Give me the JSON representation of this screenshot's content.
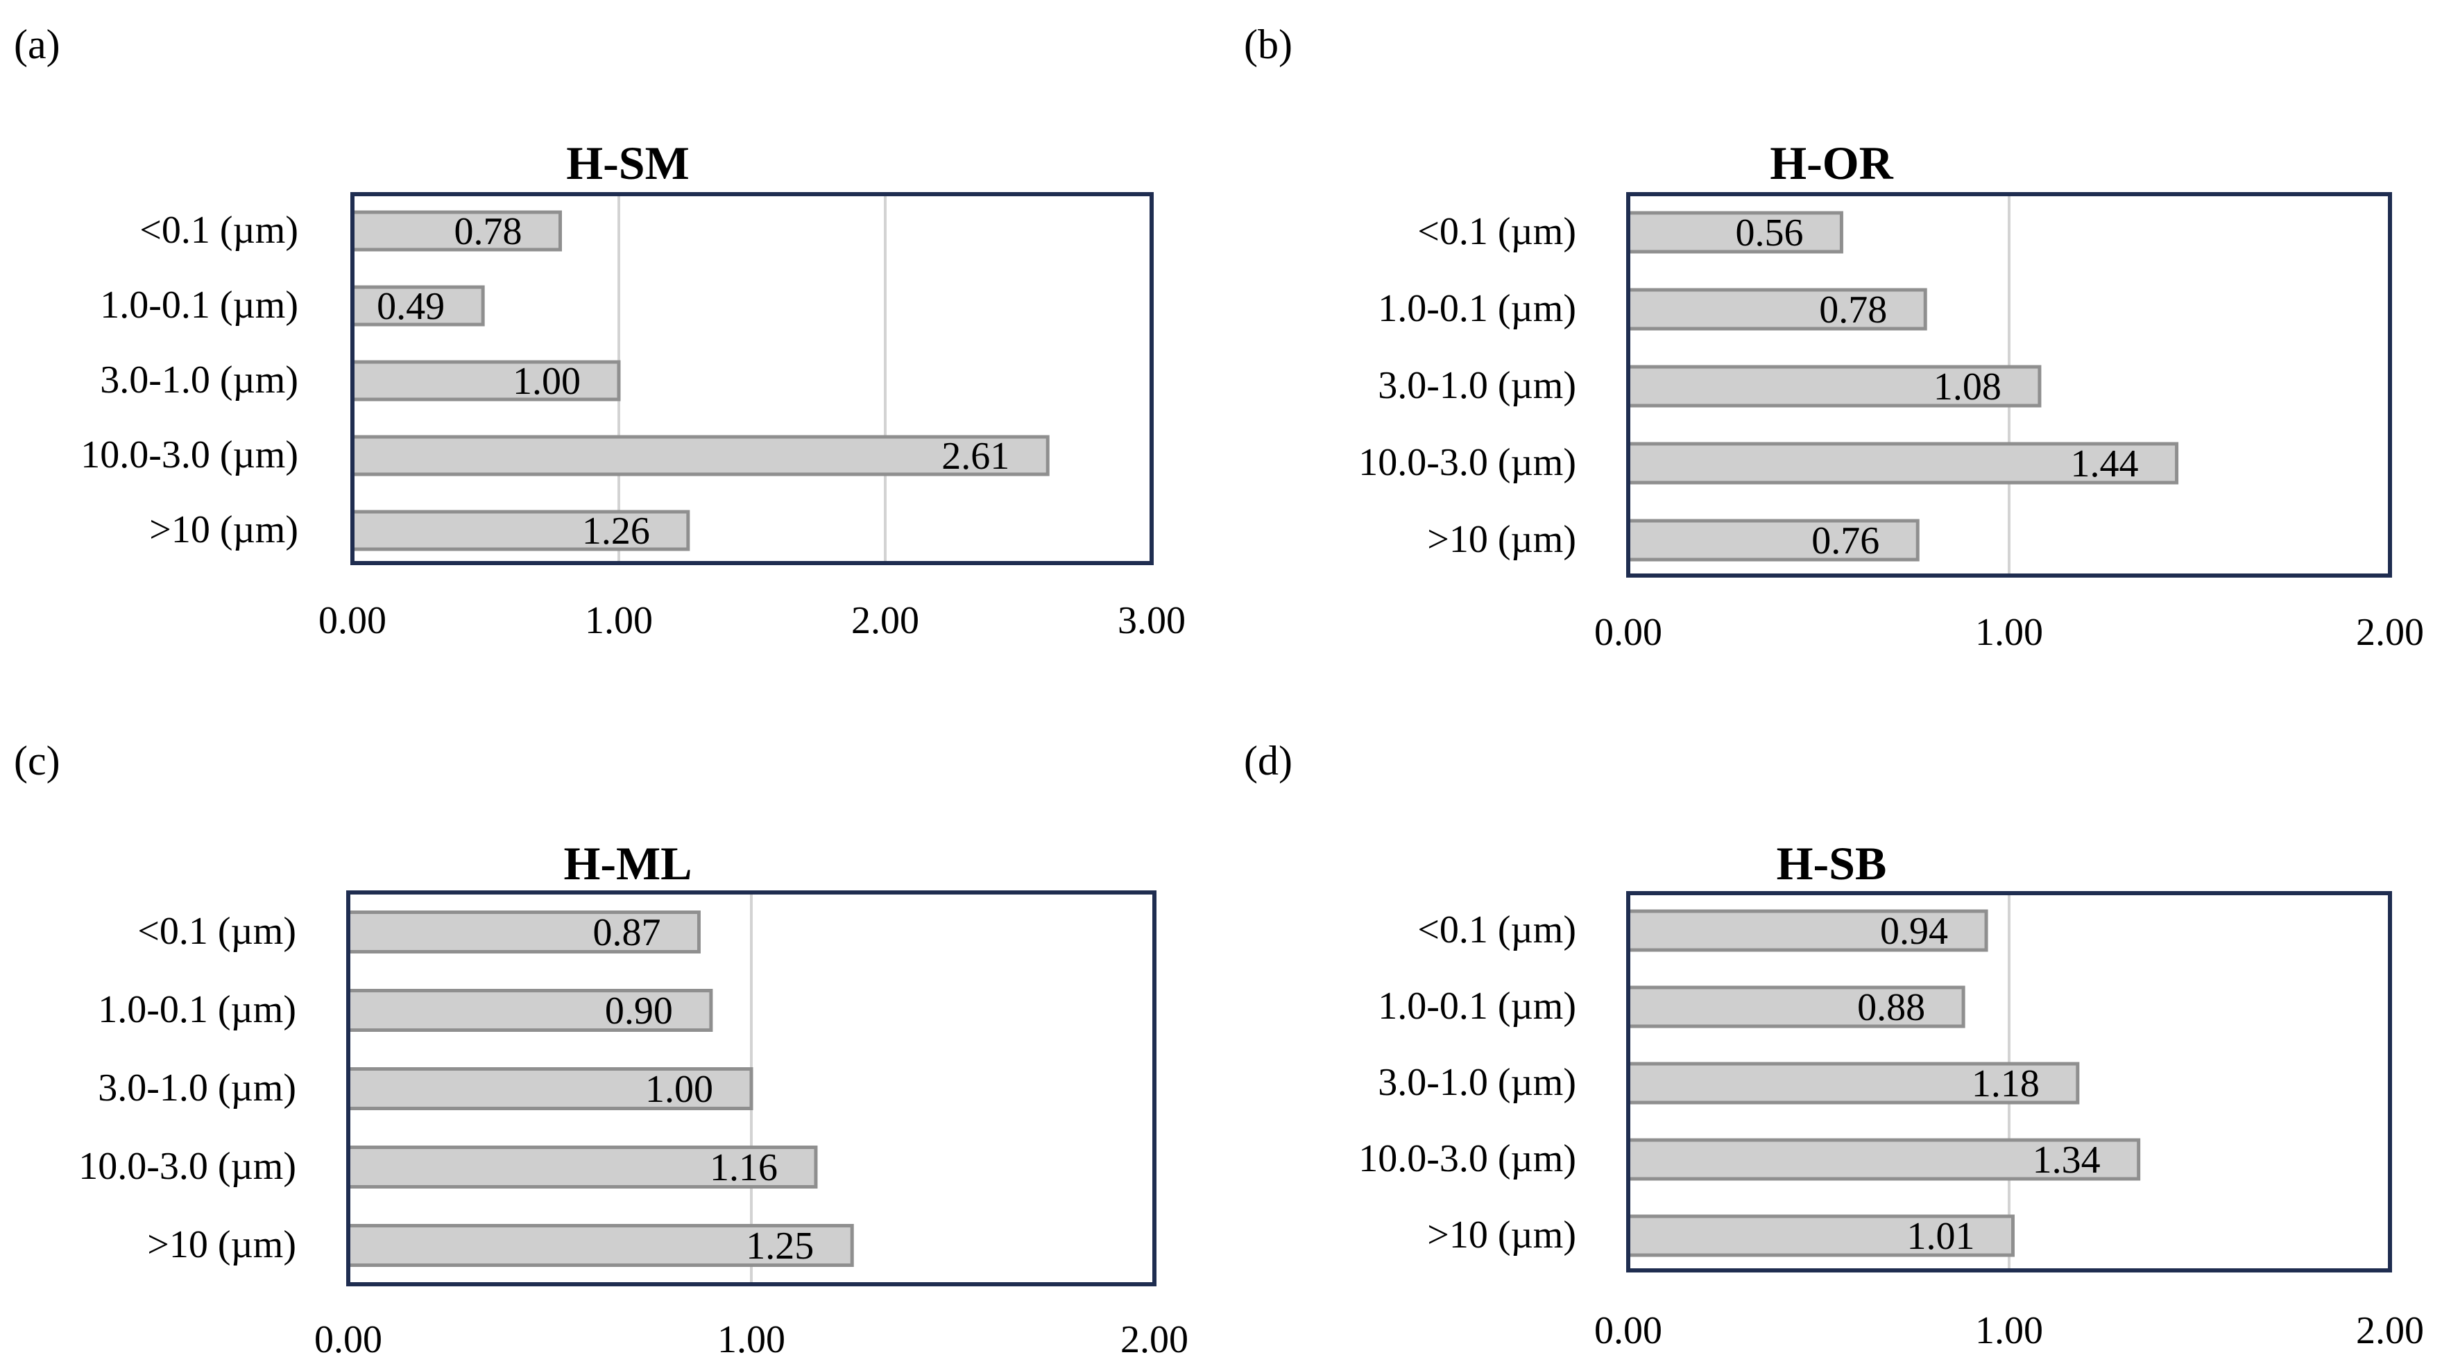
{
  "colors": {
    "bar_fill": "#cfcfcf",
    "bar_stroke": "#8f8f8f",
    "frame": "#1f2d50",
    "grid": "#d3d3d3"
  },
  "chart_data": [
    {
      "panel": "(a)",
      "type": "bar",
      "orientation": "horizontal",
      "title": "H-SM",
      "categories": [
        "<0.1 (µm)",
        "1.0-0.1 (µm)",
        "3.0-1.0 (µm)",
        "10.0-3.0 (µm)",
        ">10 (µm)"
      ],
      "values": [
        0.78,
        0.49,
        1.0,
        2.61,
        1.26
      ],
      "value_labels": [
        "0.78",
        "0.49",
        "1.00",
        "2.61",
        "1.26"
      ],
      "xlim": [
        0,
        3
      ],
      "xticks": [
        "0.00",
        "1.00",
        "2.00",
        "3.00"
      ],
      "grid": true,
      "legend": "none"
    },
    {
      "panel": "(b)",
      "type": "bar",
      "orientation": "horizontal",
      "title": "H-OR",
      "categories": [
        "<0.1 (µm)",
        "1.0-0.1 (µm)",
        "3.0-1.0 (µm)",
        "10.0-3.0 (µm)",
        ">10 (µm)"
      ],
      "values": [
        0.56,
        0.78,
        1.08,
        1.44,
        0.76
      ],
      "value_labels": [
        "0.56",
        "0.78",
        "1.08",
        "1.44",
        "0.76"
      ],
      "xlim": [
        0,
        2
      ],
      "xticks": [
        "0.00",
        "1.00",
        "2.00"
      ],
      "grid": true,
      "legend": "none"
    },
    {
      "panel": "(c)",
      "type": "bar",
      "orientation": "horizontal",
      "title": "H-ML",
      "categories": [
        "<0.1 (µm)",
        "1.0-0.1 (µm)",
        "3.0-1.0 (µm)",
        "10.0-3.0 (µm)",
        ">10 (µm)"
      ],
      "values": [
        0.87,
        0.9,
        1.0,
        1.16,
        1.25
      ],
      "value_labels": [
        "0.87",
        "0.90",
        "1.00",
        "1.16",
        "1.25"
      ],
      "xlim": [
        0,
        2
      ],
      "xticks": [
        "0.00",
        "1.00",
        "2.00"
      ],
      "grid": true,
      "legend": "none"
    },
    {
      "panel": "(d)",
      "type": "bar",
      "orientation": "horizontal",
      "title": "H-SB",
      "categories": [
        "<0.1 (µm)",
        "1.0-0.1 (µm)",
        "3.0-1.0 (µm)",
        "10.0-3.0 (µm)",
        ">10 (µm)"
      ],
      "values": [
        0.94,
        0.88,
        1.18,
        1.34,
        1.01
      ],
      "value_labels": [
        "0.94",
        "0.88",
        "1.18",
        "1.34",
        "1.01"
      ],
      "xlim": [
        0,
        2
      ],
      "xticks": [
        "0.00",
        "1.00",
        "2.00"
      ],
      "grid": true,
      "legend": "none"
    }
  ]
}
